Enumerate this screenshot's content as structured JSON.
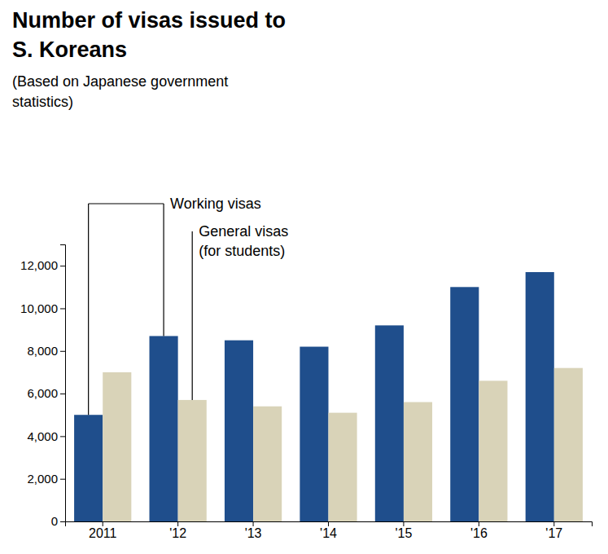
{
  "chart_data": {
    "type": "bar",
    "title": [
      "Number of visas issued to",
      "S. Koreans"
    ],
    "subtitle": [
      "(Based on Japanese government",
      "statistics)"
    ],
    "categories": [
      "2011",
      "'12",
      "'13",
      "'14",
      "'15",
      "'16",
      "'17"
    ],
    "series": [
      {
        "name": "Working visas",
        "color": "#1f4e8c",
        "values": [
          5000,
          8700,
          8500,
          8200,
          9200,
          11000,
          11700
        ]
      },
      {
        "name": "General visas",
        "color": "#d9d3b8",
        "values": [
          7000,
          5700,
          5400,
          5100,
          5600,
          6600,
          7200
        ]
      }
    ],
    "annotations": [
      {
        "text": "(for students)"
      }
    ],
    "ylim": [
      0,
      13000
    ],
    "yticks": [
      0,
      {
        "value": 2000,
        "label": "2,000"
      },
      {
        "value": 4000,
        "label": "4,000"
      },
      {
        "value": 6000,
        "label": "6,000"
      },
      {
        "value": 8000,
        "label": "8,000"
      },
      {
        "value": 10000,
        "label": "10,000"
      },
      {
        "value": 12000,
        "label": "12,000"
      }
    ],
    "grid": false
  }
}
